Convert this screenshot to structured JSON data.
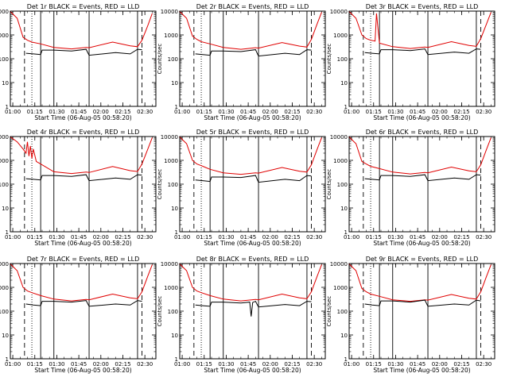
{
  "colors": {
    "events": "#000000",
    "lld": "#e00000",
    "background": "#ffffff"
  },
  "chart_data": [
    {
      "type": "line",
      "title": "Det 1r BLACK = Events, RED = LLD",
      "xlabel": "Start Time (06-Aug-05 00:58:20)",
      "ylabel": "Counts/sec",
      "x_ticks": [
        "01:00",
        "01:15",
        "01:30",
        "01:45",
        "02:00",
        "02:15",
        "02:30"
      ],
      "y_ticks": [
        "1",
        "10",
        "100",
        "1000",
        "10000"
      ],
      "xlim": [
        "00:58:20",
        "02:37:30"
      ],
      "ylim": [
        1,
        10000
      ],
      "y_scale": "log",
      "vlines_solid": [
        "01:19",
        "01:28",
        "01:52",
        "02:25"
      ],
      "vlines_dashed": [
        "01:08",
        "02:28"
      ],
      "vlines_dotted": [
        "01:13"
      ],
      "series": [
        {
          "name": "LLD",
          "x": [
            "00:58",
            "01:03",
            "01:07",
            "01:10",
            "01:13",
            "01:19",
            "01:28",
            "01:40",
            "01:50",
            "01:52",
            "02:08",
            "02:20",
            "02:25",
            "02:28",
            "02:32",
            "02:35"
          ],
          "y": [
            10000,
            5000,
            800,
            600,
            500,
            420,
            300,
            260,
            300,
            290,
            500,
            350,
            320,
            600,
            2500,
            8000
          ]
        },
        {
          "name": "Events",
          "x": [
            "01:09",
            "01:14",
            "01:19",
            "01:20",
            "01:28",
            "01:40",
            "01:50",
            "01:52",
            "02:10",
            "02:20",
            "02:25",
            "02:28"
          ],
          "y": [
            170,
            160,
            150,
            230,
            230,
            210,
            250,
            140,
            180,
            160,
            250,
            240
          ]
        }
      ]
    },
    {
      "type": "line",
      "title": "Det 2r BLACK = Events, RED = LLD",
      "xlabel": "Start Time (06-Aug-05 00:58:20)",
      "ylabel": "Counts/sec",
      "x_ticks": [
        "01:00",
        "01:15",
        "01:30",
        "01:45",
        "02:00",
        "02:15",
        "02:30"
      ],
      "y_ticks": [
        "1",
        "10",
        "100",
        "1000",
        "10000"
      ],
      "xlim": [
        "00:58:20",
        "02:37:30"
      ],
      "ylim": [
        1,
        10000
      ],
      "y_scale": "log",
      "vlines_solid": [
        "01:19",
        "01:28",
        "01:52",
        "02:25"
      ],
      "vlines_dashed": [
        "01:08",
        "02:28"
      ],
      "vlines_dotted": [
        "01:13"
      ],
      "series": [
        {
          "name": "LLD",
          "x": [
            "00:58",
            "01:03",
            "01:07",
            "01:10",
            "01:13",
            "01:19",
            "01:28",
            "01:40",
            "01:50",
            "01:52",
            "02:08",
            "02:20",
            "02:25",
            "02:28",
            "02:32",
            "02:35"
          ],
          "y": [
            10000,
            5000,
            900,
            650,
            520,
            420,
            300,
            250,
            290,
            280,
            480,
            340,
            310,
            650,
            3000,
            9000
          ]
        },
        {
          "name": "Events",
          "x": [
            "01:09",
            "01:14",
            "01:19",
            "01:20",
            "01:28",
            "01:40",
            "01:50",
            "01:52",
            "02:10",
            "02:20",
            "02:25",
            "02:28"
          ],
          "y": [
            160,
            150,
            140,
            210,
            210,
            200,
            240,
            130,
            170,
            150,
            240,
            230
          ]
        }
      ]
    },
    {
      "type": "line",
      "title": "Det 3r BLACK = Events, RED = LLD",
      "xlabel": "Start Time (06-Aug-05 00:58:20)",
      "ylabel": "Counts/sec",
      "x_ticks": [
        "01:00",
        "01:15",
        "01:30",
        "01:45",
        "02:00",
        "02:15",
        "02:30"
      ],
      "y_ticks": [
        "1",
        "10",
        "100",
        "1000",
        "10000"
      ],
      "xlim": [
        "00:58:20",
        "02:37:30"
      ],
      "ylim": [
        1,
        10000
      ],
      "y_scale": "log",
      "vlines_solid": [
        "01:19",
        "01:28",
        "01:52",
        "02:25"
      ],
      "vlines_dashed": [
        "01:08",
        "02:28"
      ],
      "vlines_dotted": [
        "01:13"
      ],
      "series": [
        {
          "name": "LLD",
          "x": [
            "00:58",
            "01:03",
            "01:07",
            "01:10",
            "01:13",
            "01:16",
            "01:17",
            "01:19",
            "01:28",
            "01:40",
            "01:50",
            "01:52",
            "02:08",
            "02:20",
            "02:25",
            "02:28",
            "02:32",
            "02:35"
          ],
          "y": [
            10000,
            5000,
            1000,
            700,
            600,
            550,
            8000,
            450,
            320,
            270,
            310,
            300,
            520,
            360,
            330,
            700,
            3000,
            9000
          ]
        },
        {
          "name": "Events",
          "x": [
            "01:09",
            "01:14",
            "01:19",
            "01:20",
            "01:28",
            "01:40",
            "01:50",
            "01:52",
            "02:10",
            "02:20",
            "02:25",
            "02:28"
          ],
          "y": [
            180,
            170,
            160,
            240,
            240,
            220,
            260,
            150,
            190,
            170,
            260,
            250
          ]
        }
      ]
    },
    {
      "type": "line",
      "title": "Det 4r BLACK = Events, RED = LLD",
      "xlabel": "Start Time (06-Aug-05 00:58:20)",
      "ylabel": "Counts/sec",
      "x_ticks": [
        "01:00",
        "01:15",
        "01:30",
        "01:45",
        "02:00",
        "02:15",
        "02:30"
      ],
      "y_ticks": [
        "1",
        "10",
        "100",
        "1000",
        "10000"
      ],
      "xlim": [
        "00:58:20",
        "02:37:30"
      ],
      "ylim": [
        1,
        10000
      ],
      "y_scale": "log",
      "vlines_solid": [
        "01:19",
        "01:28",
        "01:52",
        "02:25"
      ],
      "vlines_dashed": [
        "01:08",
        "02:28"
      ],
      "vlines_dotted": [
        "01:13"
      ],
      "series": [
        {
          "name": "LLD",
          "x": [
            "00:58",
            "01:03",
            "01:07",
            "01:09",
            "01:10",
            "01:11",
            "01:12",
            "01:13",
            "01:14",
            "01:16",
            "01:19",
            "01:28",
            "01:40",
            "01:50",
            "01:52",
            "02:08",
            "02:20",
            "02:25",
            "02:28",
            "02:32",
            "02:35"
          ],
          "y": [
            10000,
            6000,
            3000,
            2000,
            6000,
            1500,
            4000,
            1200,
            3000,
            900,
            700,
            330,
            280,
            320,
            310,
            550,
            370,
            340,
            700,
            3000,
            9000
          ]
        },
        {
          "name": "Events",
          "x": [
            "01:09",
            "01:14",
            "01:19",
            "01:20",
            "01:28",
            "01:40",
            "01:50",
            "01:52",
            "02:10",
            "02:20",
            "02:25",
            "02:28"
          ],
          "y": [
            170,
            160,
            150,
            230,
            230,
            210,
            250,
            140,
            180,
            160,
            250,
            240
          ]
        }
      ]
    },
    {
      "type": "line",
      "title": "Det 5r BLACK = Events, RED = LLD",
      "xlabel": "Start Time (06-Aug-05 00:58:20)",
      "ylabel": "Counts/sec",
      "x_ticks": [
        "01:00",
        "01:15",
        "01:30",
        "01:45",
        "02:00",
        "02:15",
        "02:30"
      ],
      "y_ticks": [
        "1",
        "10",
        "100",
        "1000",
        "10000"
      ],
      "xlim": [
        "00:58:20",
        "02:37:30"
      ],
      "ylim": [
        1,
        10000
      ],
      "y_scale": "log",
      "vlines_solid": [
        "01:19",
        "01:28",
        "01:52",
        "02:25"
      ],
      "vlines_dashed": [
        "01:08",
        "02:28"
      ],
      "vlines_dotted": [
        "01:13"
      ],
      "series": [
        {
          "name": "LLD",
          "x": [
            "00:58",
            "01:03",
            "01:07",
            "01:10",
            "01:13",
            "01:16",
            "01:19",
            "01:28",
            "01:40",
            "01:50",
            "01:52",
            "02:08",
            "02:20",
            "02:25",
            "02:28",
            "02:32",
            "02:35"
          ],
          "y": [
            10000,
            5000,
            1000,
            700,
            600,
            500,
            420,
            300,
            260,
            300,
            290,
            500,
            350,
            320,
            650,
            3000,
            9000
          ]
        },
        {
          "name": "Events",
          "x": [
            "01:09",
            "01:14",
            "01:19",
            "01:20",
            "01:28",
            "01:40",
            "01:50",
            "01:52",
            "02:10",
            "02:20",
            "02:25",
            "02:28"
          ],
          "y": [
            150,
            140,
            130,
            200,
            200,
            190,
            230,
            120,
            160,
            140,
            230,
            220
          ]
        }
      ]
    },
    {
      "type": "line",
      "title": "Det 6r BLACK = Events, RED = LLD",
      "xlabel": "Start Time (06-Aug-05 00:58:20)",
      "ylabel": "Counts/sec",
      "x_ticks": [
        "01:00",
        "01:15",
        "01:30",
        "01:45",
        "02:00",
        "02:15",
        "02:30"
      ],
      "y_ticks": [
        "1",
        "10",
        "100",
        "1000",
        "10000"
      ],
      "xlim": [
        "00:58:20",
        "02:37:30"
      ],
      "ylim": [
        1,
        10000
      ],
      "y_scale": "log",
      "vlines_solid": [
        "01:19",
        "01:28",
        "01:52",
        "02:25"
      ],
      "vlines_dashed": [
        "01:08",
        "02:28"
      ],
      "vlines_dotted": [
        "01:13"
      ],
      "series": [
        {
          "name": "LLD",
          "x": [
            "00:58",
            "01:03",
            "01:07",
            "01:10",
            "01:13",
            "01:19",
            "01:28",
            "01:40",
            "01:50",
            "01:52",
            "02:08",
            "02:20",
            "02:25",
            "02:28",
            "02:32",
            "02:35"
          ],
          "y": [
            10000,
            5000,
            900,
            700,
            560,
            450,
            320,
            270,
            310,
            300,
            520,
            360,
            330,
            650,
            3000,
            9000
          ]
        },
        {
          "name": "Events",
          "x": [
            "01:09",
            "01:14",
            "01:19",
            "01:20",
            "01:28",
            "01:40",
            "01:50",
            "01:52",
            "02:10",
            "02:20",
            "02:25",
            "02:28"
          ],
          "y": [
            170,
            160,
            150,
            230,
            230,
            210,
            250,
            140,
            180,
            160,
            250,
            240
          ]
        }
      ]
    },
    {
      "type": "line",
      "title": "Det 7r BLACK = Events, RED = LLD",
      "xlabel": "Start Time (06-Aug-05 00:58:20)",
      "ylabel": "Counts/sec",
      "x_ticks": [
        "01:00",
        "01:15",
        "01:30",
        "01:45",
        "02:00",
        "02:15",
        "02:30"
      ],
      "y_ticks": [
        "1",
        "10",
        "100",
        "1000",
        "10000"
      ],
      "xlim": [
        "00:58:20",
        "02:37:30"
      ],
      "ylim": [
        1,
        10000
      ],
      "y_scale": "log",
      "vlines_solid": [
        "01:19",
        "01:28",
        "01:52",
        "02:25"
      ],
      "vlines_dashed": [
        "01:08",
        "02:28"
      ],
      "vlines_dotted": [
        "01:13"
      ],
      "series": [
        {
          "name": "LLD",
          "x": [
            "00:58",
            "01:03",
            "01:07",
            "01:10",
            "01:13",
            "01:19",
            "01:28",
            "01:40",
            "01:50",
            "01:52",
            "02:08",
            "02:20",
            "02:25",
            "02:28",
            "02:32",
            "02:35"
          ],
          "y": [
            10000,
            5000,
            1000,
            700,
            600,
            450,
            320,
            270,
            310,
            300,
            520,
            360,
            330,
            650,
            3000,
            9000
          ]
        },
        {
          "name": "Events",
          "x": [
            "01:09",
            "01:14",
            "01:19",
            "01:20",
            "01:28",
            "01:40",
            "01:50",
            "01:52",
            "02:10",
            "02:20",
            "02:25",
            "02:28"
          ],
          "y": [
            200,
            180,
            170,
            260,
            260,
            240,
            280,
            160,
            200,
            180,
            280,
            260
          ]
        }
      ]
    },
    {
      "type": "line",
      "title": "Det 8r BLACK = Events, RED = LLD",
      "xlabel": "Start Time (06-Aug-05 00:58:20)",
      "ylabel": "Counts/sec",
      "x_ticks": [
        "01:00",
        "01:15",
        "01:30",
        "01:45",
        "02:00",
        "02:15",
        "02:30"
      ],
      "y_ticks": [
        "1",
        "10",
        "100",
        "1000",
        "10000"
      ],
      "xlim": [
        "00:58:20",
        "02:37:30"
      ],
      "ylim": [
        1,
        10000
      ],
      "y_scale": "log",
      "vlines_solid": [
        "01:19",
        "01:28",
        "01:52",
        "02:25"
      ],
      "vlines_dashed": [
        "01:08",
        "02:28"
      ],
      "vlines_dotted": [
        "01:13"
      ],
      "series": [
        {
          "name": "LLD",
          "x": [
            "00:58",
            "01:03",
            "01:07",
            "01:10",
            "01:13",
            "01:19",
            "01:28",
            "01:40",
            "01:50",
            "01:52",
            "02:08",
            "02:20",
            "02:25",
            "02:28",
            "02:32",
            "02:35"
          ],
          "y": [
            10000,
            5000,
            1000,
            700,
            600,
            450,
            320,
            270,
            310,
            300,
            520,
            360,
            330,
            650,
            3000,
            9000
          ]
        },
        {
          "name": "Events",
          "x": [
            "01:09",
            "01:14",
            "01:19",
            "01:20",
            "01:28",
            "01:40",
            "01:46",
            "01:47",
            "01:48",
            "01:50",
            "01:52",
            "02:10",
            "02:20",
            "02:25",
            "02:28"
          ],
          "y": [
            180,
            170,
            160,
            240,
            240,
            220,
            240,
            60,
            230,
            260,
            150,
            190,
            170,
            260,
            250
          ]
        }
      ]
    },
    {
      "type": "line",
      "title": "Det 9r BLACK = Events, RED = LLD",
      "xlabel": "Start Time (06-Aug-05 00:58:20)",
      "ylabel": "Counts/sec",
      "x_ticks": [
        "01:00",
        "01:15",
        "01:30",
        "01:45",
        "02:00",
        "02:15",
        "02:30"
      ],
      "y_ticks": [
        "1",
        "10",
        "100",
        "1000",
        "10000"
      ],
      "xlim": [
        "00:58:20",
        "02:37:30"
      ],
      "ylim": [
        1,
        10000
      ],
      "y_scale": "log",
      "vlines_solid": [
        "01:19",
        "01:28",
        "01:52",
        "02:25"
      ],
      "vlines_dashed": [
        "01:08",
        "02:28"
      ],
      "vlines_dotted": [
        "01:13"
      ],
      "series": [
        {
          "name": "LLD",
          "x": [
            "00:58",
            "01:03",
            "01:07",
            "01:10",
            "01:13",
            "01:19",
            "01:28",
            "01:40",
            "01:50",
            "01:52",
            "02:08",
            "02:20",
            "02:25",
            "02:28",
            "02:32",
            "02:35"
          ],
          "y": [
            10000,
            5000,
            900,
            650,
            520,
            420,
            300,
            260,
            300,
            290,
            500,
            350,
            320,
            650,
            3000,
            9000
          ]
        },
        {
          "name": "Events",
          "x": [
            "01:09",
            "01:14",
            "01:19",
            "01:20",
            "01:28",
            "01:40",
            "01:50",
            "01:52",
            "02:10",
            "02:20",
            "02:25",
            "02:28"
          ],
          "y": [
            200,
            180,
            170,
            270,
            270,
            240,
            290,
            160,
            200,
            180,
            290,
            270
          ]
        }
      ]
    }
  ]
}
